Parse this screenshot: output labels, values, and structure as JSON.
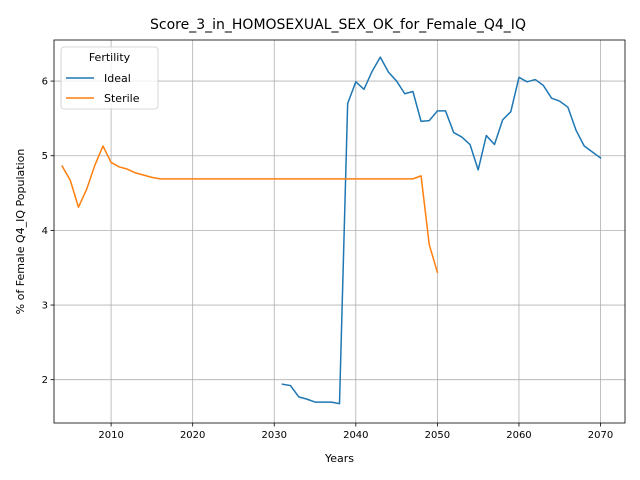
{
  "chart_data": {
    "type": "line",
    "title": "Score_3_in_HOMOSEXUAL_SEX_OK_for_Female_Q4_IQ",
    "xlabel": "Years",
    "ylabel": "% of Female Q4_IQ Population",
    "xlim": [
      2003,
      2073
    ],
    "ylim": [
      1.42,
      6.55
    ],
    "xticks": [
      2010,
      2020,
      2030,
      2040,
      2050,
      2060,
      2070
    ],
    "yticks": [
      2,
      3,
      4,
      5,
      6
    ],
    "grid": true,
    "legend": {
      "title": "Fertility",
      "position": "top-left"
    },
    "series": [
      {
        "name": "Ideal",
        "color": "#1f77b4",
        "x": [
          2031,
          2032,
          2033,
          2034,
          2035,
          2036,
          2037,
          2038,
          2039,
          2040,
          2041,
          2042,
          2043,
          2044,
          2045,
          2046,
          2047,
          2048,
          2049,
          2050,
          2051,
          2052,
          2053,
          2054,
          2055,
          2056,
          2057,
          2058,
          2059,
          2060,
          2061,
          2062,
          2063,
          2064,
          2065,
          2066,
          2067,
          2068,
          2069,
          2070
        ],
        "y": [
          1.94,
          1.92,
          1.77,
          1.74,
          1.7,
          1.7,
          1.7,
          1.68,
          5.7,
          5.99,
          5.89,
          6.13,
          6.32,
          6.12,
          6.0,
          5.83,
          5.86,
          5.46,
          5.47,
          5.6,
          5.6,
          5.31,
          5.25,
          5.15,
          4.81,
          5.27,
          5.15,
          5.48,
          5.59,
          6.05,
          5.99,
          6.02,
          5.94,
          5.77,
          5.73,
          5.65,
          5.34,
          5.13,
          5.05,
          4.97
        ]
      },
      {
        "name": "Sterile",
        "color": "#ff7f0e",
        "x": [
          2004,
          2005,
          2006,
          2007,
          2008,
          2009,
          2010,
          2011,
          2012,
          2013,
          2014,
          2015,
          2016,
          2017,
          2018,
          2019,
          2020,
          2021,
          2022,
          2023,
          2024,
          2025,
          2026,
          2027,
          2028,
          2029,
          2030,
          2031,
          2032,
          2033,
          2034,
          2035,
          2036,
          2037,
          2038,
          2039,
          2040,
          2041,
          2042,
          2043,
          2044,
          2045,
          2046,
          2047,
          2048,
          2049,
          2050
        ],
        "y": [
          4.86,
          4.67,
          4.31,
          4.55,
          4.87,
          5.13,
          4.91,
          4.85,
          4.82,
          4.77,
          4.74,
          4.71,
          4.69,
          4.69,
          4.69,
          4.69,
          4.69,
          4.69,
          4.69,
          4.69,
          4.69,
          4.69,
          4.69,
          4.69,
          4.69,
          4.69,
          4.69,
          4.69,
          4.69,
          4.69,
          4.69,
          4.69,
          4.69,
          4.69,
          4.69,
          4.69,
          4.69,
          4.69,
          4.69,
          4.69,
          4.69,
          4.69,
          4.69,
          4.69,
          4.73,
          3.81,
          3.44
        ]
      }
    ]
  }
}
